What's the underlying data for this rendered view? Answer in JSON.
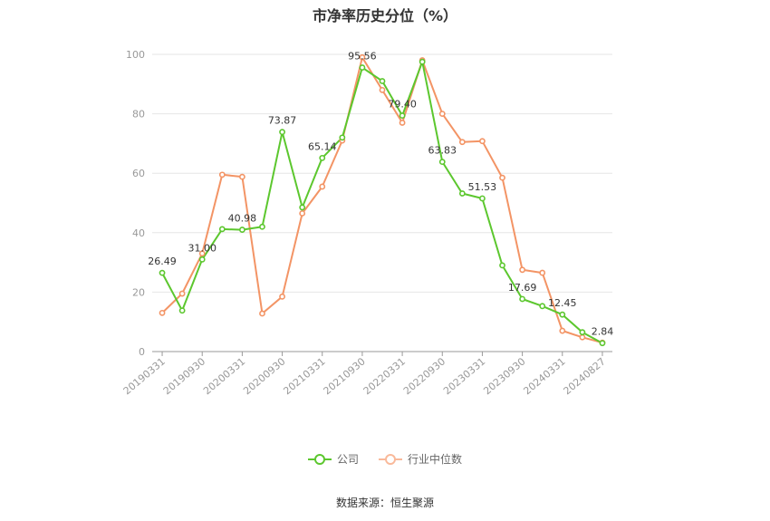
{
  "chart_data": {
    "type": "line",
    "title": "市净率历史分位（%）",
    "xlabel": "",
    "ylabel": "",
    "ylim": [
      0,
      100
    ],
    "yticks": [
      0,
      20,
      40,
      60,
      80,
      100
    ],
    "x": [
      "20190331",
      "20190630",
      "20190930",
      "20191231",
      "20200331",
      "20200630",
      "20200930",
      "20201231",
      "20210331",
      "20210630",
      "20210930",
      "20211231",
      "20220331",
      "20220630",
      "20220930",
      "20221231",
      "20230331",
      "20230630",
      "20230930",
      "20231231",
      "20240331",
      "20240630",
      "20240827"
    ],
    "xtick_labels": [
      "20190331",
      "20190930",
      "20200331",
      "20200930",
      "20210331",
      "20210930",
      "20220331",
      "20220930",
      "20230331",
      "20230930",
      "20240331",
      "20240827"
    ],
    "series": [
      {
        "name": "公司",
        "color": "#5cc72e",
        "values": [
          26.49,
          13.8,
          31.0,
          41.2,
          40.98,
          42.0,
          73.87,
          48.5,
          65.14,
          72.0,
          95.56,
          91.0,
          79.4,
          97.5,
          63.83,
          53.2,
          51.53,
          29.0,
          17.69,
          15.3,
          12.45,
          6.5,
          2.84
        ]
      },
      {
        "name": "行业中位数",
        "color": "#f39465",
        "values": [
          13.0,
          19.5,
          33.0,
          59.5,
          58.8,
          12.8,
          18.5,
          46.5,
          55.5,
          71.0,
          99.0,
          88.0,
          77.0,
          98.0,
          80.0,
          70.5,
          70.8,
          58.5,
          27.5,
          26.5,
          7.0,
          4.8,
          3.0
        ]
      }
    ],
    "data_labels": [
      {
        "series": 0,
        "index": 0,
        "text": "26.49"
      },
      {
        "series": 0,
        "index": 2,
        "text": "31.00"
      },
      {
        "series": 0,
        "index": 4,
        "text": "40.98"
      },
      {
        "series": 0,
        "index": 6,
        "text": "73.87"
      },
      {
        "series": 0,
        "index": 8,
        "text": "65.14"
      },
      {
        "series": 0,
        "index": 10,
        "text": "95.56"
      },
      {
        "series": 0,
        "index": 12,
        "text": "79.40"
      },
      {
        "series": 0,
        "index": 14,
        "text": "63.83"
      },
      {
        "series": 0,
        "index": 16,
        "text": "51.53"
      },
      {
        "series": 0,
        "index": 18,
        "text": "17.69"
      },
      {
        "series": 0,
        "index": 20,
        "text": "12.45"
      },
      {
        "series": 0,
        "index": 22,
        "text": "2.84"
      }
    ],
    "legend_position": "bottom-center",
    "grid": true
  },
  "legend": {
    "company_label": "公司",
    "industry_label": "行业中位数"
  },
  "source_text": "数据来源：恒生聚源"
}
